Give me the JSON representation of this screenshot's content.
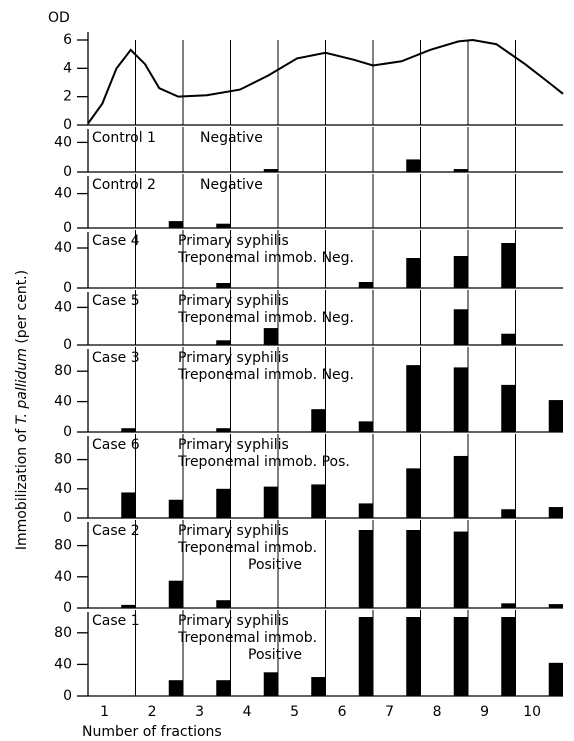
{
  "ylabel": [
    "Immobilization of ",
    "T. pallidum",
    " (per cent.)"
  ],
  "chart_data": [
    {
      "type": "line",
      "ylabel": "OD",
      "xlim": [
        0,
        10
      ],
      "ylim": [
        0,
        6
      ],
      "yticks": [
        0,
        2,
        4,
        6
      ],
      "color": "#000000",
      "x": [
        0,
        0.3,
        0.6,
        0.9,
        1.2,
        1.5,
        1.9,
        2.5,
        3.2,
        3.8,
        4.4,
        5.0,
        5.6,
        6.0,
        6.6,
        7.2,
        7.8,
        8.1,
        8.6,
        9.2,
        9.7,
        10
      ],
      "values": [
        0.1,
        1.5,
        4.0,
        5.3,
        4.3,
        2.6,
        2.0,
        2.1,
        2.5,
        3.5,
        4.7,
        5.1,
        4.6,
        4.2,
        4.5,
        5.3,
        5.9,
        6.0,
        5.7,
        4.3,
        3.0,
        2.2
      ]
    },
    {
      "type": "bar",
      "annotations": [
        "Control 1",
        "Negative"
      ],
      "ylim": [
        0,
        50
      ],
      "yticks": [
        0,
        40
      ],
      "color": "#000000",
      "values": [
        0,
        0,
        0,
        4,
        0,
        0,
        17,
        4,
        0,
        0
      ]
    },
    {
      "type": "bar",
      "annotations": [
        "Control 2",
        "Negative"
      ],
      "ylim": [
        0,
        50
      ],
      "yticks": [
        0,
        40
      ],
      "color": "#000000",
      "values": [
        0,
        8,
        5,
        0,
        0,
        0,
        0,
        0,
        0,
        0
      ]
    },
    {
      "type": "bar",
      "annotations": [
        "Case 4",
        "Primary syphilis",
        "Treponemal immob. Neg."
      ],
      "ylim": [
        0,
        50
      ],
      "yticks": [
        0,
        40
      ],
      "color": "#000000",
      "values": [
        0,
        0,
        5,
        0,
        0,
        6,
        30,
        32,
        45,
        0
      ]
    },
    {
      "type": "bar",
      "annotations": [
        "Case 5",
        "Primary syphilis",
        "Treponemal immob. Neg."
      ],
      "ylim": [
        0,
        50
      ],
      "yticks": [
        0,
        40
      ],
      "color": "#000000",
      "values": [
        0,
        0,
        5,
        18,
        0,
        0,
        0,
        38,
        12,
        0
      ]
    },
    {
      "type": "bar",
      "annotations": [
        "Case 3",
        "Primary syphilis",
        "Treponemal immob. Neg."
      ],
      "ylim": [
        0,
        100
      ],
      "yticks": [
        0,
        40,
        80
      ],
      "color": "#000000",
      "values": [
        5,
        0,
        5,
        0,
        30,
        14,
        88,
        85,
        62,
        42
      ]
    },
    {
      "type": "bar",
      "annotations": [
        "Case 6",
        "Primary syphilis",
        "Treponemal immob. Pos."
      ],
      "ylim": [
        0,
        100
      ],
      "yticks": [
        0,
        40,
        80
      ],
      "color": "#000000",
      "values": [
        35,
        25,
        40,
        43,
        46,
        20,
        68,
        85,
        12,
        15
      ]
    },
    {
      "type": "bar",
      "annotations": [
        "Case 2",
        "Primary syphilis",
        "Treponemal immob.",
        "Positive"
      ],
      "ylim": [
        0,
        100
      ],
      "yticks": [
        0,
        40,
        80
      ],
      "color": "#000000",
      "values": [
        4,
        35,
        10,
        0,
        0,
        100,
        100,
        98,
        6,
        5
      ]
    },
    {
      "type": "bar",
      "annotations": [
        "Case 1",
        "Primary syphilis",
        "Treponemal immob.",
        "Positive"
      ],
      "ylim": [
        0,
        100
      ],
      "yticks": [
        0,
        40,
        80
      ],
      "color": "#000000",
      "values": [
        0,
        20,
        20,
        30,
        24,
        100,
        100,
        100,
        100,
        42
      ],
      "categories": [
        "1",
        "2",
        "3",
        "4",
        "5",
        "6",
        "7",
        "8",
        "9",
        "10"
      ],
      "xlabel": "Number of fractions"
    }
  ]
}
